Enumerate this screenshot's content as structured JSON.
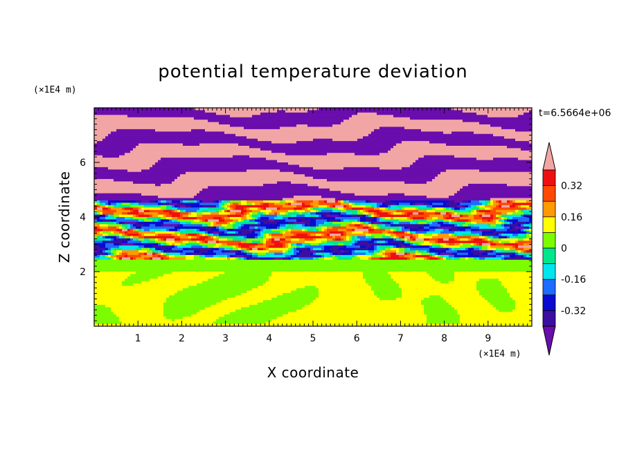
{
  "chart_data": {
    "type": "heatmap",
    "title": "potential temperature deviation",
    "xlabel": "X coordinate",
    "ylabel": "Z coordinate",
    "x_unit": "(×1E4 m)",
    "y_unit": "(×1E4 m)",
    "time_label": "t=6.5664e+06",
    "xlim": [
      0,
      10
    ],
    "ylim": [
      0,
      8
    ],
    "x_ticks": [
      1,
      2,
      3,
      4,
      5,
      6,
      7,
      8,
      9
    ],
    "y_ticks": [
      2,
      4,
      6
    ],
    "x_tick_labels": [
      "1",
      "2",
      "3",
      "4",
      "5",
      "6",
      "7",
      "8",
      "9"
    ],
    "y_tick_labels": [
      "2",
      "4",
      "6"
    ],
    "colorbar": {
      "levels": [
        -0.4,
        -0.32,
        -0.24,
        -0.16,
        -0.08,
        0,
        0.08,
        0.16,
        0.24,
        0.32,
        0.4
      ],
      "colors": [
        "#6a0dad",
        "#3b0fa0",
        "#0a0ad0",
        "#1e6bff",
        "#00e6ee",
        "#00e68c",
        "#7cfc00",
        "#ffff00",
        "#ff9a00",
        "#ff4a00",
        "#ee1010",
        "#f2a5a5"
      ],
      "labels": [
        "0.32",
        "0.16",
        "0",
        "-0.16",
        "-0.32"
      ],
      "label_values": [
        0.32,
        0.16,
        0,
        -0.16,
        -0.32
      ]
    },
    "regions": [
      {
        "z_range": [
          0,
          2
        ],
        "description_values": [
          0.0,
          0.08
        ]
      },
      {
        "z_range": [
          2,
          2.4
        ],
        "description_values": [
          0.0
        ]
      },
      {
        "z_range": [
          2.4,
          4.6
        ],
        "description_values": [
          -0.4,
          0.4
        ]
      },
      {
        "z_range": [
          4.6,
          8
        ],
        "description_values": [
          -0.4,
          0.4
        ]
      }
    ]
  }
}
